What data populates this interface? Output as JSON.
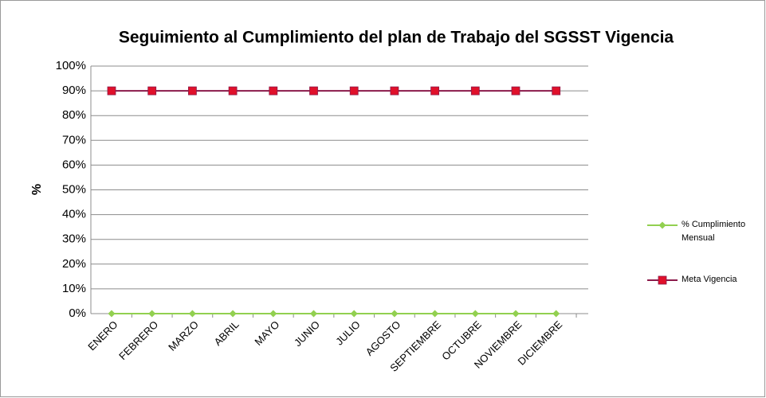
{
  "chart_data": {
    "type": "line",
    "title": "Seguimiento al Cumplimiento del plan de Trabajo del SGSST Vigencia",
    "ylabel": "%",
    "categories": [
      "ENERO",
      "FEBRERO",
      "MARZO",
      "ABRIL",
      "MAYO",
      "JUNIO",
      "JULIO",
      "AGOSTO",
      "SEPTIEMBRE",
      "OCTUBRE",
      "NOVIEMBRE",
      "DICIEMBRE"
    ],
    "series": [
      {
        "name": "% Cumplimiento Mensual",
        "color": "#92d050",
        "marker": "diamond",
        "values": [
          0,
          0,
          0,
          0,
          0,
          0,
          0,
          0,
          0,
          0,
          0,
          0
        ]
      },
      {
        "name": "Meta Vigencia",
        "color": "#8b1a4a",
        "marker_color": "#e0102a",
        "marker": "square",
        "values": [
          90,
          90,
          90,
          90,
          90,
          90,
          90,
          90,
          90,
          90,
          90,
          90
        ]
      }
    ],
    "ylim": [
      0,
      100
    ],
    "yticks": [
      {
        "value": 0,
        "label": "0%"
      },
      {
        "value": 10,
        "label": "10%"
      },
      {
        "value": 20,
        "label": "20%"
      },
      {
        "value": 30,
        "label": "30%"
      },
      {
        "value": 40,
        "label": "40%"
      },
      {
        "value": 50,
        "label": "50%"
      },
      {
        "value": 60,
        "label": "60%"
      },
      {
        "value": 70,
        "label": "70%"
      },
      {
        "value": 80,
        "label": "80%"
      },
      {
        "value": 90,
        "label": "90%"
      },
      {
        "value": 100,
        "label": "100%"
      }
    ],
    "grid": true,
    "legend": "right"
  }
}
